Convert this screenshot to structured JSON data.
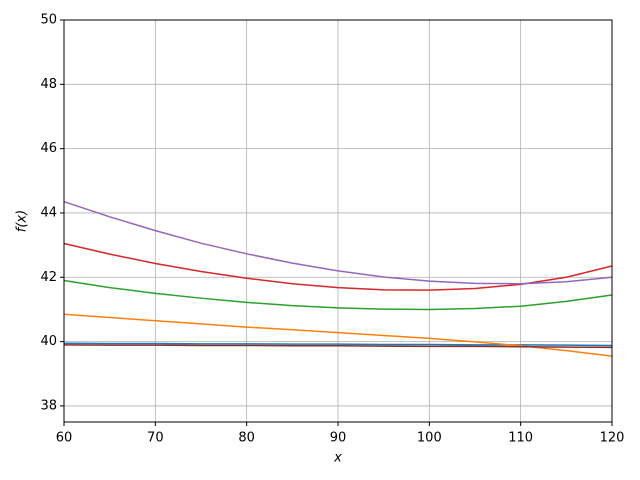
{
  "chart_data": {
    "type": "line",
    "x_label": "x",
    "y_label": "f(x)",
    "x": [
      60,
      65,
      70,
      75,
      80,
      85,
      90,
      95,
      100,
      105,
      110,
      115,
      120
    ],
    "series": [
      {
        "color": "#1f77b4",
        "values": [
          39.95,
          39.94,
          39.94,
          39.93,
          39.93,
          39.92,
          39.92,
          39.91,
          39.91,
          39.9,
          39.9,
          39.89,
          39.88
        ]
      },
      {
        "color": "#ff7f0e",
        "values": [
          40.85,
          40.75,
          40.65,
          40.55,
          40.45,
          40.37,
          40.28,
          40.19,
          40.1,
          39.99,
          39.87,
          39.72,
          39.55
        ]
      },
      {
        "color": "#2ca02c",
        "values": [
          41.9,
          41.68,
          41.5,
          41.35,
          41.22,
          41.12,
          41.05,
          41.01,
          41.0,
          41.03,
          41.1,
          41.25,
          41.45
        ]
      },
      {
        "color": "#d62728",
        "values": [
          43.05,
          42.72,
          42.43,
          42.18,
          41.97,
          41.8,
          41.68,
          41.61,
          41.6,
          41.65,
          41.78,
          42.0,
          42.35
        ]
      },
      {
        "color": "#9467bd",
        "values": [
          44.35,
          43.88,
          43.45,
          43.06,
          42.73,
          42.44,
          42.2,
          42.01,
          41.88,
          41.81,
          41.8,
          41.86,
          42.0
        ]
      },
      {
        "color": "#8c2d2d",
        "values": [
          39.9,
          39.89,
          39.89,
          39.88,
          39.88,
          39.87,
          39.87,
          39.86,
          39.85,
          39.85,
          39.84,
          39.83,
          39.82
        ]
      }
    ],
    "xlim": [
      60,
      120
    ],
    "xticks": [
      60,
      70,
      80,
      90,
      100,
      110,
      120
    ],
    "ylim": [
      37.5,
      50
    ],
    "yticks": [
      38,
      40,
      42,
      44,
      46,
      48,
      50
    ],
    "grid": true
  }
}
